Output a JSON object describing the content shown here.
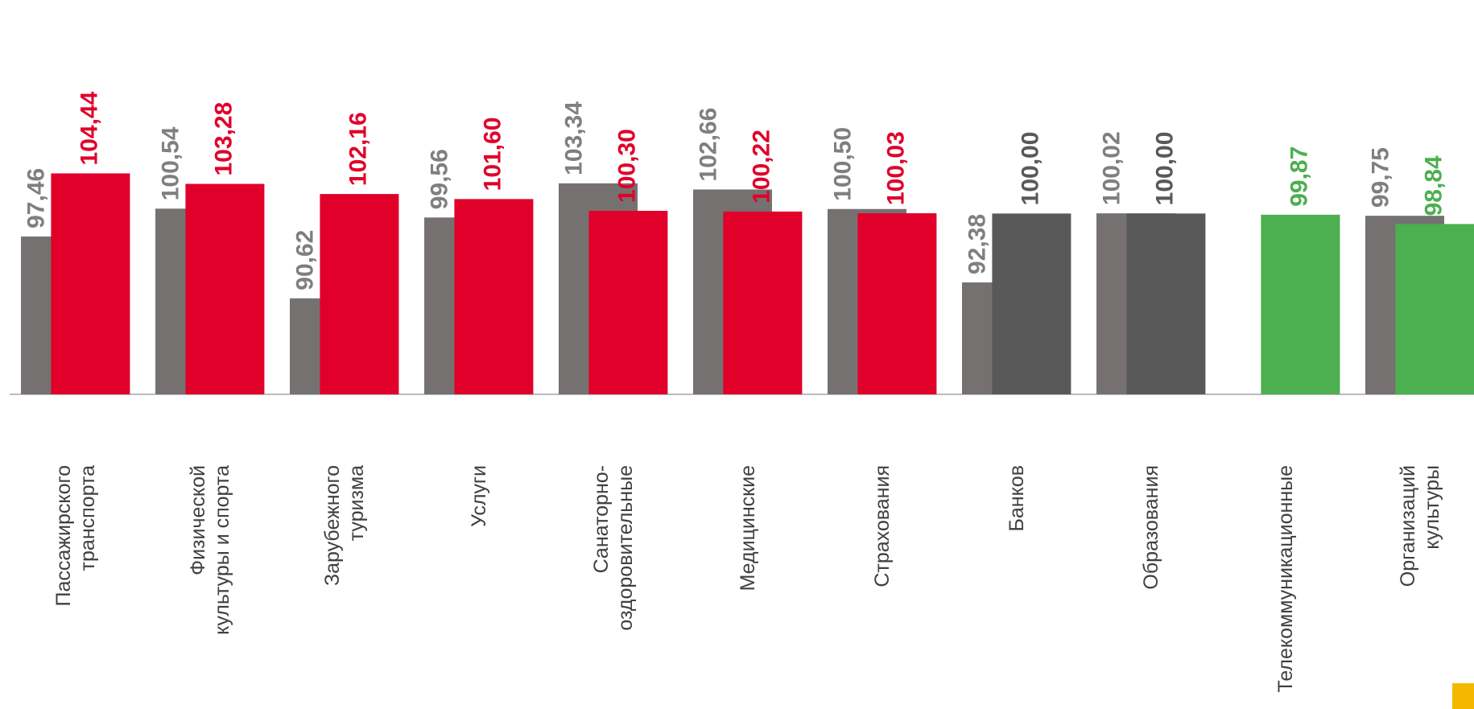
{
  "chart_data": {
    "type": "bar",
    "categories": [
      "Пассажирского\nтранспорта",
      "Физической\nкультуры и спорта",
      "Зарубежного\nтуризма",
      "Услуги",
      "Санаторно-\nоздоровительные",
      "Медицинские",
      "Страхования",
      "Банков",
      "Образования",
      "Телекоммуникационные",
      "Организаций\nкультуры"
    ],
    "series": [
      {
        "color": "#767171",
        "label_color": "#7f7f7f",
        "values": [
          97.46,
          100.54,
          90.62,
          99.56,
          103.34,
          102.66,
          100.5,
          92.38,
          100.02,
          null,
          99.75
        ],
        "value_labels": [
          "97,46",
          "100,54",
          "90,62",
          "99,56",
          "103,34",
          "102,66",
          "100,50",
          "92,38",
          "100,02",
          null,
          "99,75"
        ]
      },
      {
        "colors": [
          "#e0002a",
          "#e0002a",
          "#e0002a",
          "#e0002a",
          "#e0002a",
          "#e0002a",
          "#e0002a",
          "#595959",
          "#595959",
          "#4caf50",
          "#4caf50"
        ],
        "values": [
          104.44,
          103.28,
          102.16,
          101.6,
          100.3,
          100.22,
          100.03,
          100.0,
          100.0,
          99.87,
          98.84
        ],
        "value_labels": [
          "104,44",
          "103,28",
          "102,16",
          "101,60",
          "100,30",
          "100,22",
          "100,03",
          "100,00",
          "100,00",
          "99,87",
          "98,84"
        ]
      }
    ],
    "ylim": [
      80,
      110
    ]
  }
}
